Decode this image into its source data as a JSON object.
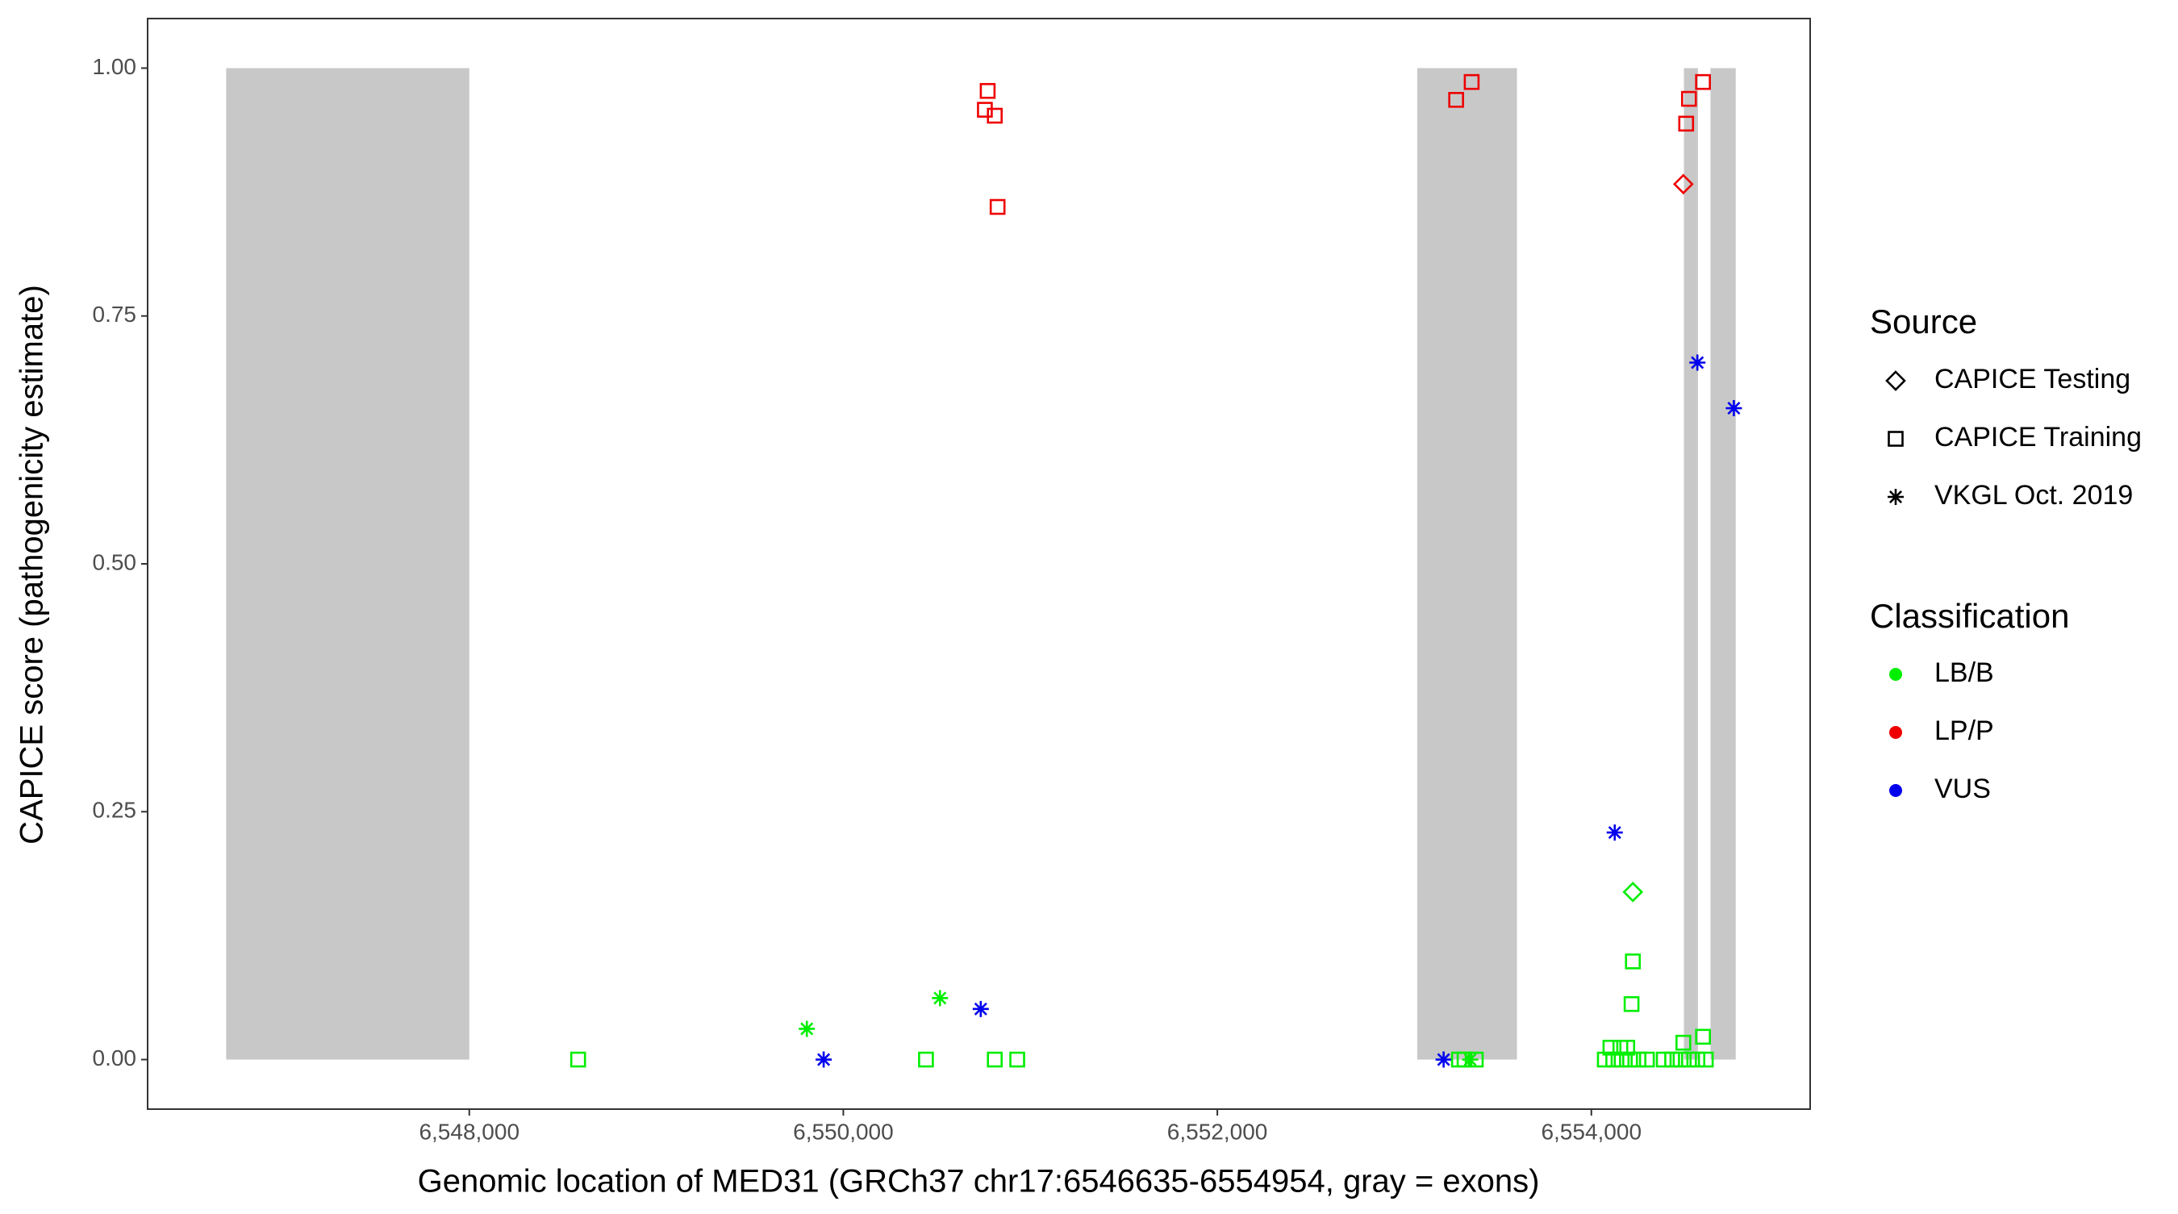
{
  "chart_data": {
    "type": "scatter",
    "x_label": "Genomic location of MED31 (GRCh37 chr17:6546635-6554954, gray = exons)",
    "y_label": "CAPICE score (pathogenicity estimate)",
    "xlim": [
      6546280,
      6555170
    ],
    "ylim": [
      -0.05,
      1.05
    ],
    "xticks": [
      {
        "value": 6548000,
        "label": "6,548,000"
      },
      {
        "value": 6550000,
        "label": "6,550,000"
      },
      {
        "value": 6552000,
        "label": "6,552,000"
      },
      {
        "value": 6554000,
        "label": "6,554,000"
      }
    ],
    "yticks": [
      {
        "value": 0,
        "label": "0.00"
      },
      {
        "value": 0.25,
        "label": "0.25"
      },
      {
        "value": 0.5,
        "label": "0.50"
      },
      {
        "value": 0.75,
        "label": "0.75"
      },
      {
        "value": 1,
        "label": "1.00"
      }
    ],
    "exons": [
      [
        6546700,
        6548000
      ],
      [
        6553069,
        6553602
      ],
      [
        6554495,
        6554570
      ],
      [
        6554637,
        6554772
      ]
    ],
    "exon_y": [
      0,
      1
    ],
    "exon_color": "#c8c8c8",
    "source_title": "Source",
    "sources": [
      {
        "name": "CAPICE Testing",
        "shape": "diamond"
      },
      {
        "name": "CAPICE Training",
        "shape": "square"
      },
      {
        "name": "VKGL Oct. 2019",
        "shape": "asterisk"
      }
    ],
    "class_title": "Classification",
    "classes": [
      {
        "name": "LB/B",
        "color": "#00ee00"
      },
      {
        "name": "LP/P",
        "color": "#ee0000"
      },
      {
        "name": "VUS",
        "color": "#0000ee"
      }
    ],
    "points": {
      "x": [
        6550772,
        6550757,
        6550810,
        6550825,
        6553277,
        6553360,
        6554507,
        6554522,
        6554597,
        6554492,
        6554567,
        6554762,
        6554125,
        6550735,
        6549895,
        6553210,
        6549805,
        6550517,
        6554222,
        6548582,
        6550442,
        6550810,
        6550930,
        6554222,
        6554215,
        6554597,
        6554492,
        6553292,
        6553322,
        6553352,
        6553382,
        6554072,
        6554117,
        6554162,
        6554207,
        6554252,
        6554297,
        6554387,
        6554432,
        6554477,
        6554522,
        6554567,
        6554612,
        6554102,
        6554155,
        6554192
      ],
      "y": [
        0.977,
        0.958,
        0.952,
        0.86,
        0.968,
        0.986,
        0.944,
        0.969,
        0.986,
        0.883,
        0.703,
        0.657,
        0.229,
        0.051,
        0,
        0,
        0.031,
        0.062,
        0.169,
        0,
        0,
        0,
        0,
        0.099,
        0.056,
        0.023,
        0.017,
        0,
        0,
        0,
        0,
        0,
        0,
        0,
        0,
        0,
        0,
        0,
        0,
        0,
        0,
        0,
        0,
        0.012,
        0.012,
        0.012
      ],
      "source": [
        "CAPICE Training",
        "CAPICE Training",
        "CAPICE Training",
        "CAPICE Training",
        "CAPICE Training",
        "CAPICE Training",
        "CAPICE Training",
        "CAPICE Training",
        "CAPICE Training",
        "CAPICE Testing",
        "VKGL Oct. 2019",
        "VKGL Oct. 2019",
        "VKGL Oct. 2019",
        "VKGL Oct. 2019",
        "VKGL Oct. 2019",
        "VKGL Oct. 2019",
        "VKGL Oct. 2019",
        "VKGL Oct. 2019",
        "CAPICE Testing",
        "CAPICE Training",
        "CAPICE Training",
        "CAPICE Training",
        "CAPICE Training",
        "CAPICE Training",
        "CAPICE Training",
        "CAPICE Training",
        "CAPICE Training",
        "CAPICE Training",
        "CAPICE Training",
        "VKGL Oct. 2019",
        "CAPICE Training",
        "CAPICE Training",
        "CAPICE Training",
        "CAPICE Training",
        "CAPICE Training",
        "CAPICE Training",
        "CAPICE Training",
        "CAPICE Training",
        "CAPICE Training",
        "CAPICE Training",
        "CAPICE Training",
        "CAPICE Training",
        "CAPICE Training",
        "CAPICE Training",
        "CAPICE Training",
        "CAPICE Training"
      ],
      "class": [
        "LP/P",
        "LP/P",
        "LP/P",
        "LP/P",
        "LP/P",
        "LP/P",
        "LP/P",
        "LP/P",
        "LP/P",
        "LP/P",
        "VUS",
        "VUS",
        "VUS",
        "VUS",
        "VUS",
        "VUS",
        "LB/B",
        "LB/B",
        "LB/B",
        "LB/B",
        "LB/B",
        "LB/B",
        "LB/B",
        "LB/B",
        "LB/B",
        "LB/B",
        "LB/B",
        "LB/B",
        "LB/B",
        "LB/B",
        "LB/B",
        "LB/B",
        "LB/B",
        "LB/B",
        "LB/B",
        "LB/B",
        "LB/B",
        "LB/B",
        "LB/B",
        "LB/B",
        "LB/B",
        "LB/B",
        "LB/B",
        "LB/B",
        "LB/B",
        "LB/B"
      ]
    }
  }
}
